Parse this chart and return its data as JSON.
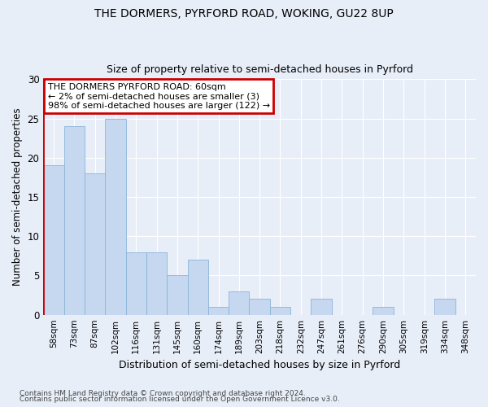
{
  "title1": "THE DORMERS, PYRFORD ROAD, WOKING, GU22 8UP",
  "title2": "Size of property relative to semi-detached houses in Pyrford",
  "xlabel": "Distribution of semi-detached houses by size in Pyrford",
  "ylabel": "Number of semi-detached properties",
  "categories": [
    "58sqm",
    "73sqm",
    "87sqm",
    "102sqm",
    "116sqm",
    "131sqm",
    "145sqm",
    "160sqm",
    "174sqm",
    "189sqm",
    "203sqm",
    "218sqm",
    "232sqm",
    "247sqm",
    "261sqm",
    "276sqm",
    "290sqm",
    "305sqm",
    "319sqm",
    "334sqm",
    "348sqm"
  ],
  "values": [
    19,
    24,
    18,
    25,
    8,
    8,
    5,
    7,
    1,
    3,
    2,
    1,
    0,
    2,
    0,
    0,
    1,
    0,
    0,
    2,
    0
  ],
  "bar_fill_color": "#c5d8f0",
  "bar_edge_color": "#8ab4d8",
  "highlight_color": "#cc0000",
  "annotation_title": "THE DORMERS PYRFORD ROAD: 60sqm",
  "annotation_line2": "← 2% of semi-detached houses are smaller (3)",
  "annotation_line3": "98% of semi-detached houses are larger (122) →",
  "ylim": [
    0,
    30
  ],
  "yticks": [
    0,
    5,
    10,
    15,
    20,
    25,
    30
  ],
  "footer1": "Contains HM Land Registry data © Crown copyright and database right 2024.",
  "footer2": "Contains public sector information licensed under the Open Government Licence v3.0.",
  "bg_color": "#e8eef8",
  "plot_bg_color": "#e8eef8",
  "grid_color": "#ffffff"
}
